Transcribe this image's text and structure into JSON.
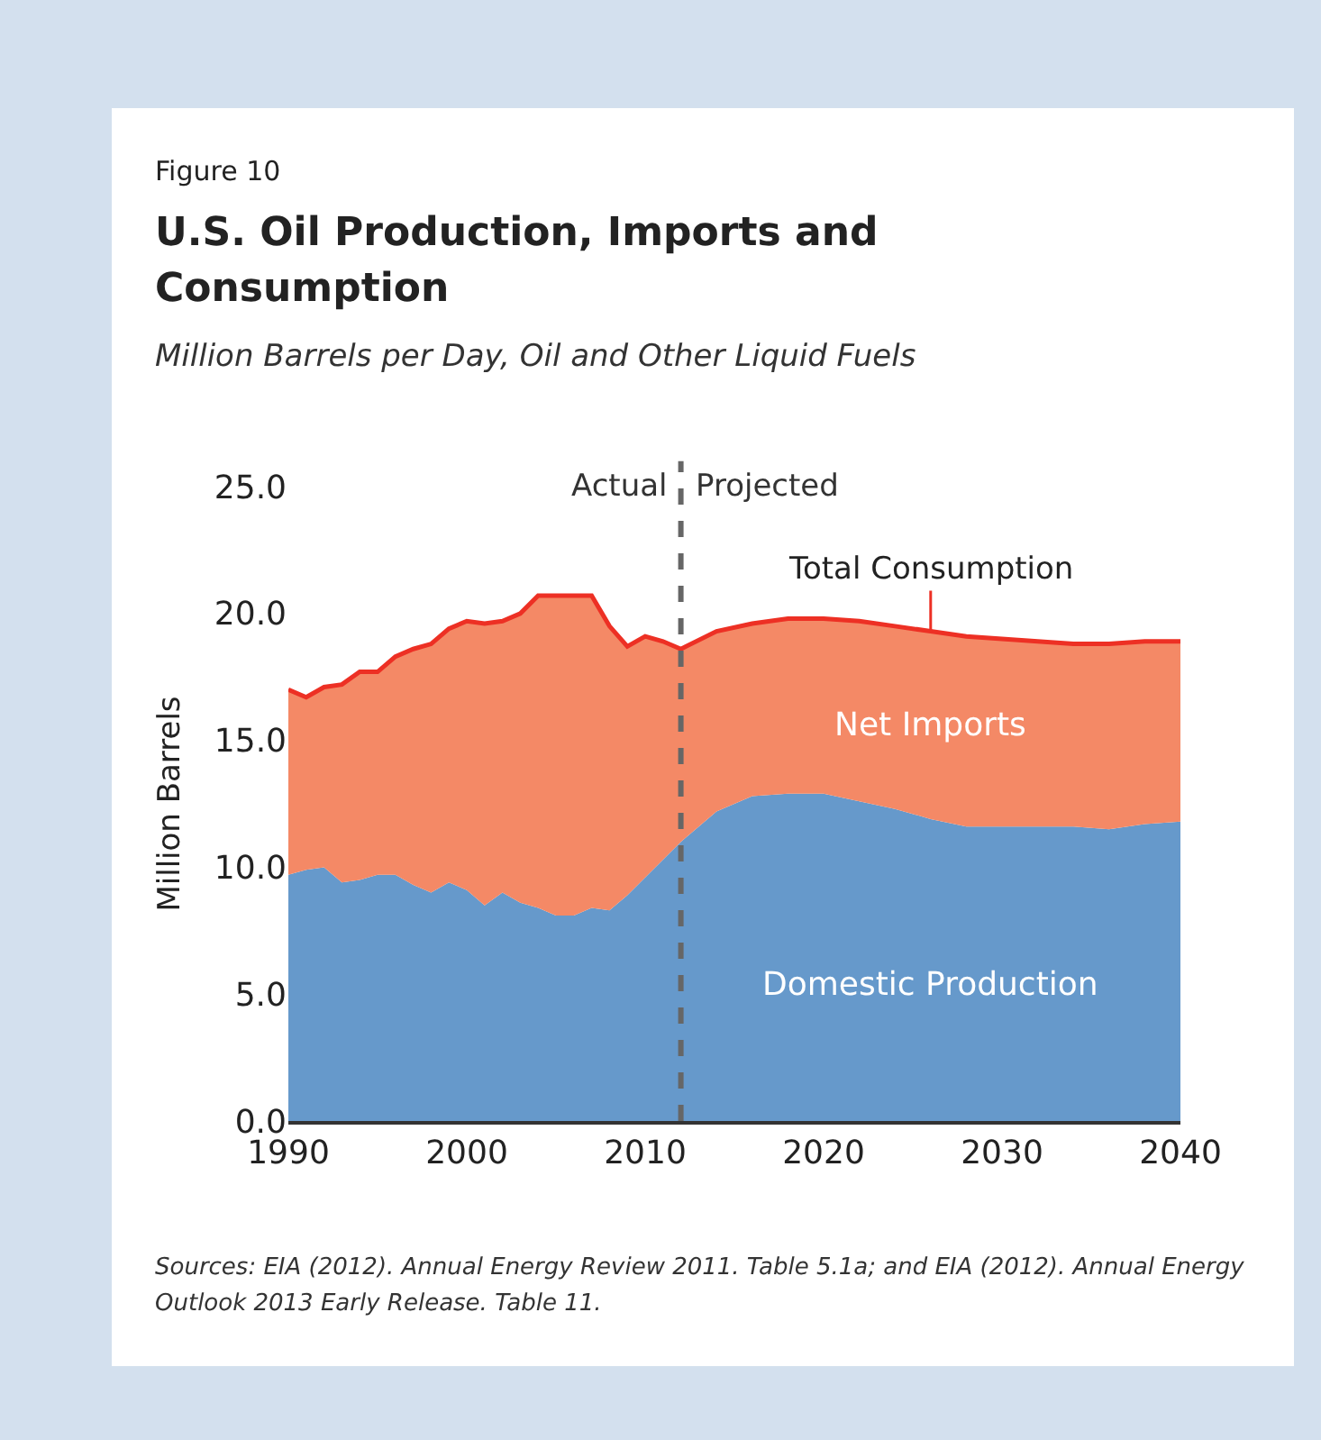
{
  "chart_data": {
    "type": "area",
    "stacked": true,
    "annotations": [
      "Figure 10",
      "Sources: EIA (2012). Annual Energy Review 2011. Table 5.1a; and EIA (2012). Annual Energy Outlook 2013 Early Release. Table 11.",
      {
        "text": "Projected",
        "x": 2012
      },
      {
        "text": "Total Consumption",
        "x": 2026,
        "y": 19.3
      }
    ],
    "title": "U.S. Oil Production, Imports and Consumption",
    "subtitle": "Million Barrels per Day, Oil and Other Liquid Fuels",
    "ylabel": "Million Barrels",
    "x": [
      1990,
      1991,
      1992,
      1993,
      1994,
      1995,
      1996,
      1997,
      1998,
      1999,
      2000,
      2001,
      2002,
      2003,
      2004,
      2005,
      2006,
      2007,
      2008,
      2009,
      2010,
      2011,
      2012,
      2014,
      2016,
      2018,
      2020,
      2022,
      2024,
      2026,
      2028,
      2030,
      2032,
      2034,
      2036,
      2038,
      2040
    ],
    "series": [
      {
        "name": "Domestic Production",
        "color": "#6699cb",
        "values": [
          9.7,
          9.9,
          10.0,
          9.4,
          9.5,
          9.7,
          9.7,
          9.3,
          9.0,
          9.4,
          9.1,
          8.5,
          9.0,
          8.6,
          8.4,
          8.1,
          8.1,
          8.4,
          8.3,
          8.9,
          9.6,
          10.3,
          11.0,
          12.2,
          12.8,
          12.9,
          12.9,
          12.6,
          12.3,
          11.9,
          11.6,
          11.6,
          11.6,
          11.6,
          11.5,
          11.7,
          11.8
        ]
      },
      {
        "name": "Net Imports",
        "color": "#f48966",
        "values": [
          7.3,
          6.8,
          7.1,
          7.8,
          8.2,
          8.0,
          8.6,
          9.3,
          9.8,
          10.0,
          10.6,
          11.1,
          10.7,
          11.4,
          12.3,
          12.6,
          12.6,
          12.3,
          11.2,
          9.8,
          9.5,
          8.6,
          7.6,
          7.1,
          6.8,
          6.9,
          6.9,
          7.1,
          7.2,
          7.4,
          7.5,
          7.4,
          7.3,
          7.2,
          7.3,
          7.2,
          7.1
        ]
      }
    ],
    "xlim": [
      1990,
      2040
    ],
    "xticks": [
      1990,
      2000,
      2010,
      2020,
      2030,
      2040
    ],
    "ylim": [
      0,
      25
    ],
    "yticks": [
      {
        "value": 0,
        "label": "0.0"
      },
      {
        "value": 5,
        "label": "5.0"
      },
      {
        "value": 10,
        "label": "10.0"
      },
      {
        "value": 15,
        "label": "15.0"
      },
      {
        "value": 20,
        "label": "20.0"
      },
      {
        "value": 25,
        "label": "25.0"
      }
    ],
    "ref_lines": [
      {
        "axis": "x",
        "value": 2012,
        "label": "Actual",
        "color": "#666666",
        "line_style": "dashed"
      }
    ],
    "grid": false,
    "legend": false
  }
}
